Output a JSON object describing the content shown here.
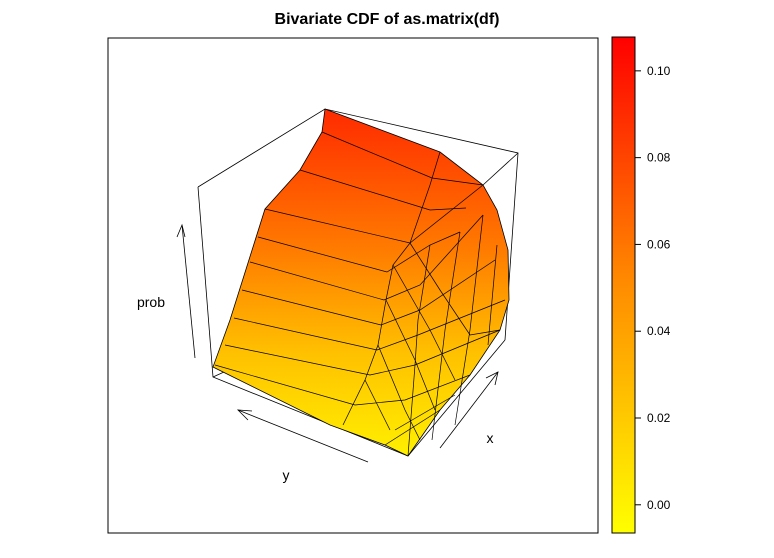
{
  "chart_data": {
    "type": "surface",
    "title": "Bivariate CDF of as.matrix(df)",
    "xlabel": "x",
    "ylabel": "y",
    "zlabel": "prob",
    "zlim": [
      -0.0065,
      0.1078
    ],
    "colorbar": {
      "ticks": [
        0.0,
        0.02,
        0.04,
        0.06,
        0.08,
        0.1
      ],
      "tick_labels": [
        "0.00",
        "0.02",
        "0.04",
        "0.06",
        "0.08",
        "0.10"
      ],
      "low_color": "#FFFF00",
      "mid_color": "#FF8C00",
      "high_color": "#FF0000"
    }
  }
}
